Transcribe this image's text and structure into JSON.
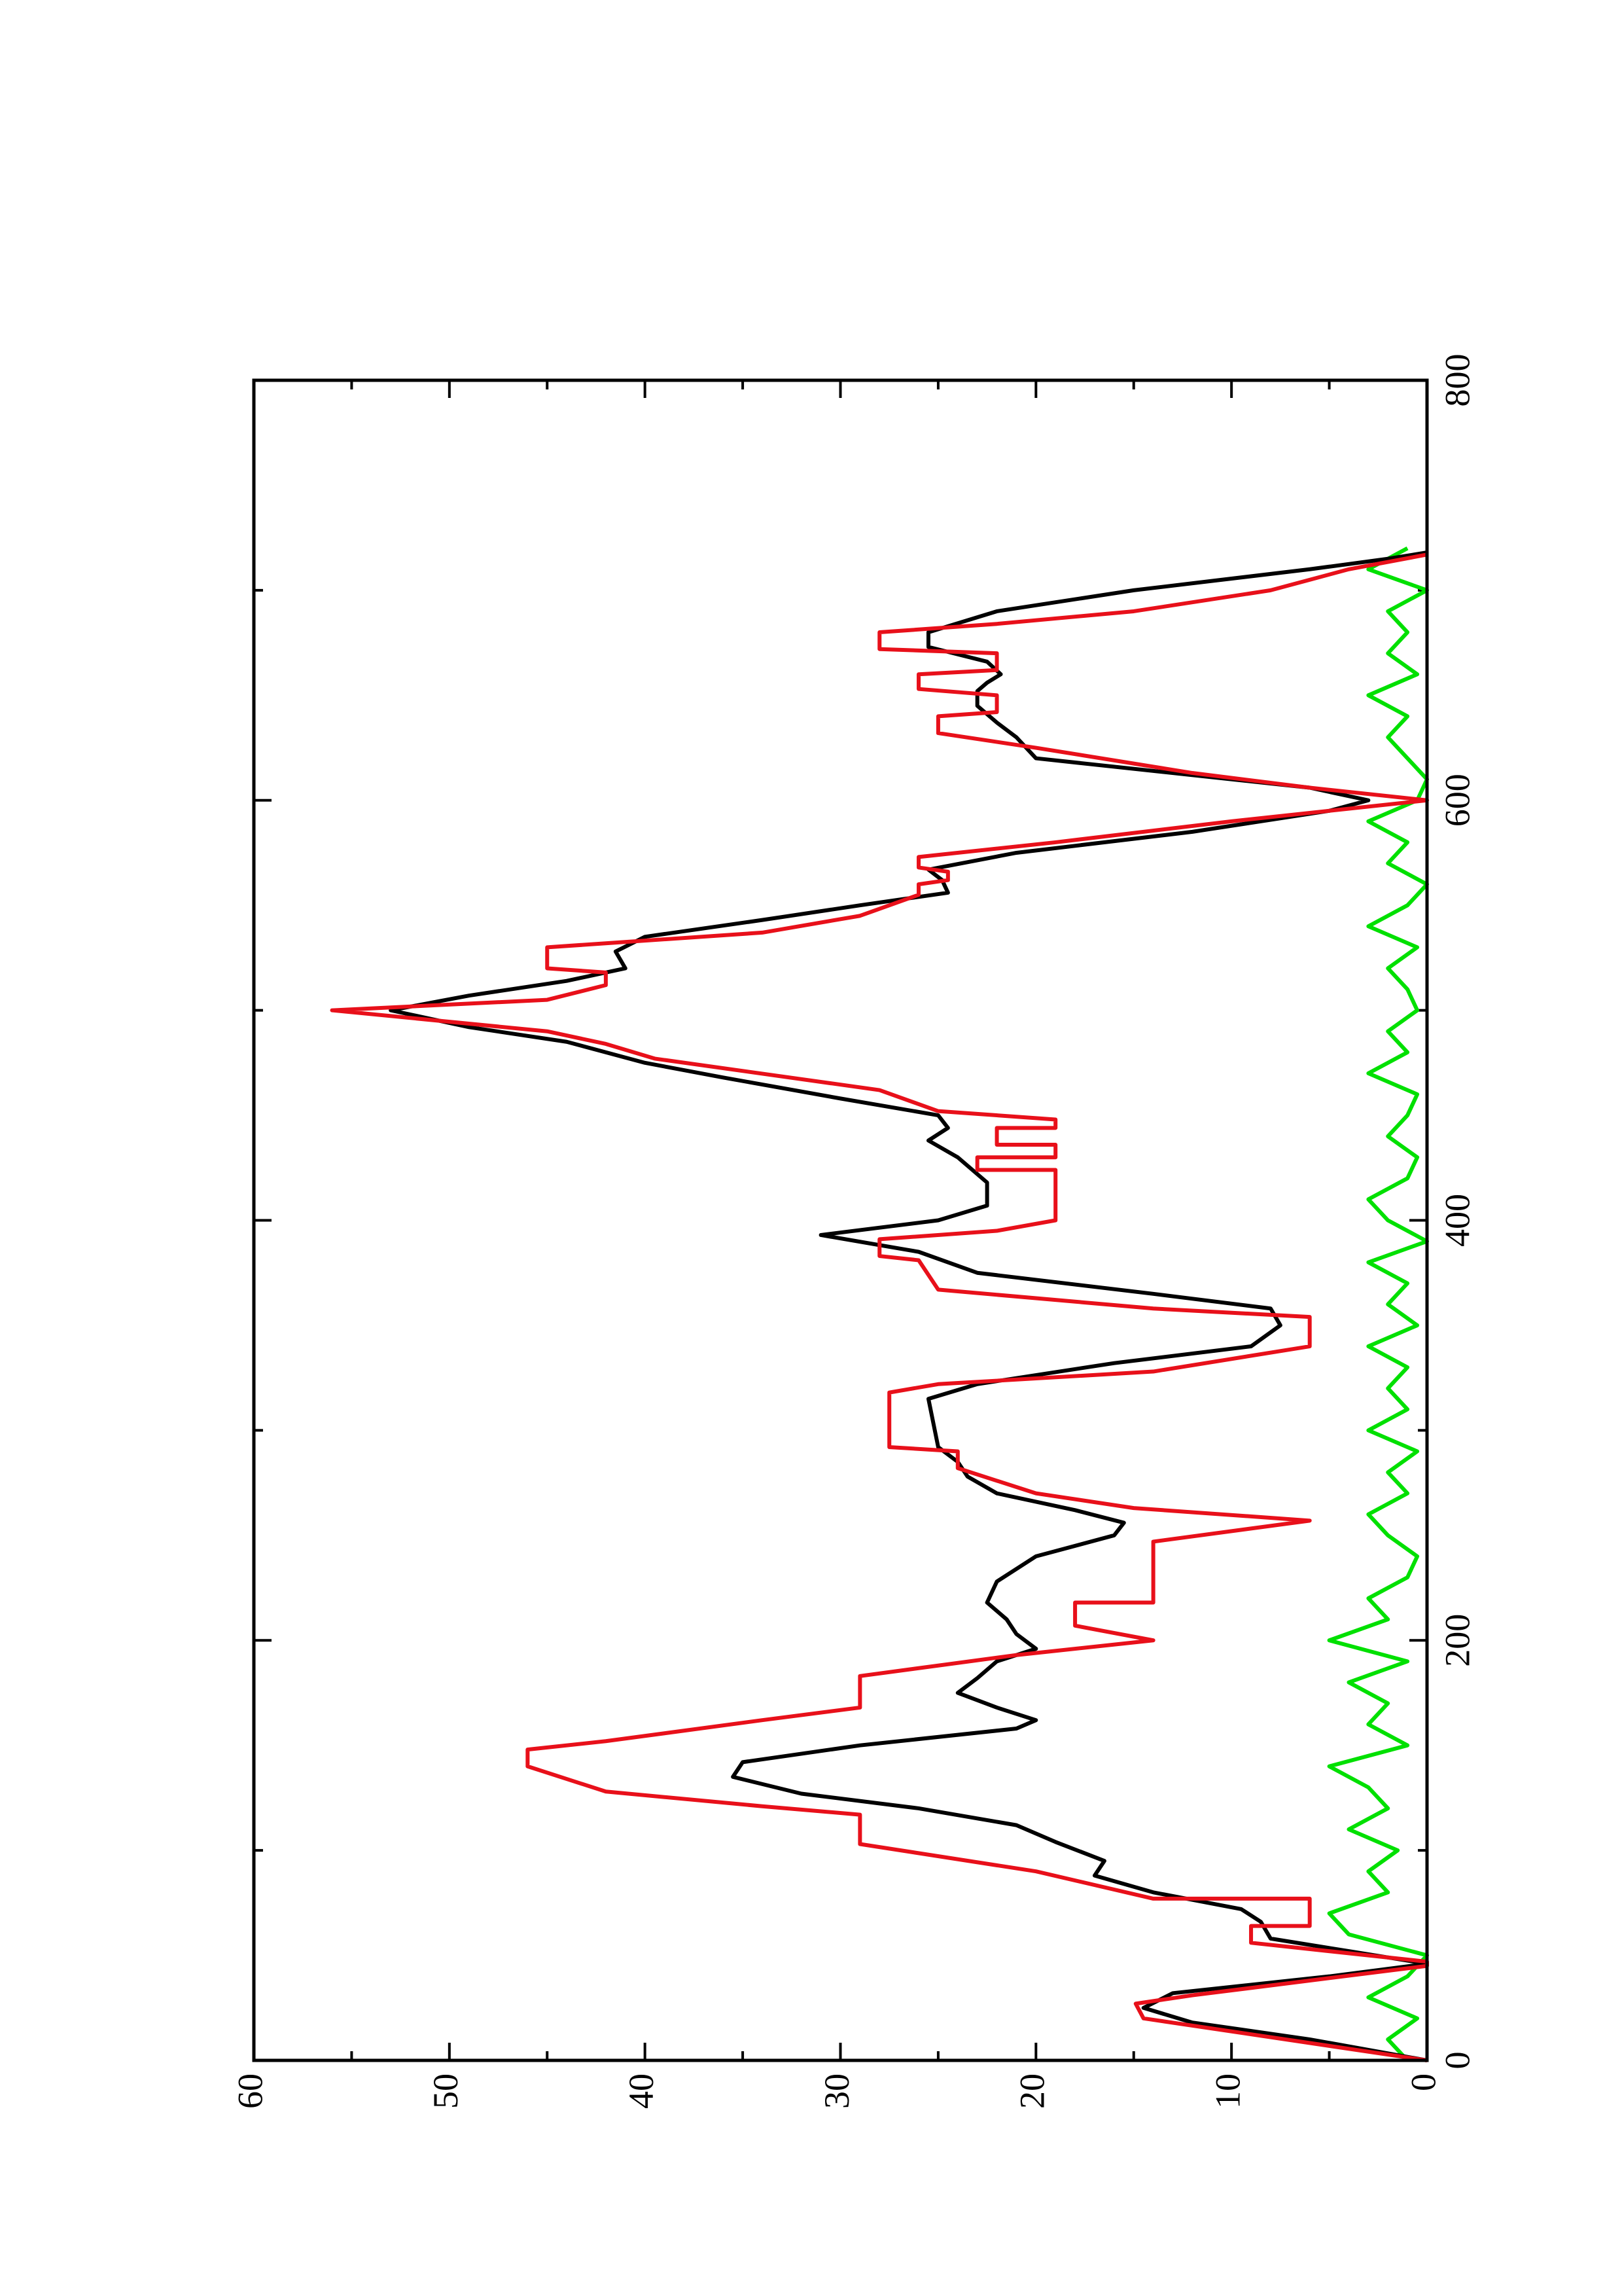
{
  "chart_data": {
    "type": "line",
    "xlim": [
      0,
      800
    ],
    "xticks": [
      0,
      200,
      400,
      600,
      800
    ],
    "ylim": [
      0,
      60
    ],
    "yticks": [
      0,
      10,
      20,
      30,
      40,
      50,
      60
    ],
    "series": [
      {
        "color": "#00e000",
        "x": [
          0,
          10,
          20,
          30,
          40,
          50,
          60,
          70,
          80,
          90,
          100,
          110,
          120,
          130,
          140,
          150,
          160,
          170,
          180,
          190,
          200,
          210,
          220,
          230,
          240,
          250,
          260,
          270,
          280,
          290,
          300,
          310,
          320,
          330,
          340,
          350,
          360,
          370,
          380,
          390,
          400,
          410,
          420,
          430,
          440,
          450,
          460,
          470,
          480,
          490,
          500,
          510,
          520,
          530,
          540,
          550,
          560,
          570,
          580,
          590,
          600,
          610,
          620,
          630,
          640,
          650,
          660,
          670,
          680,
          690,
          700,
          710,
          720
        ],
        "values": [
          1,
          2,
          0.5,
          3,
          1,
          0,
          4,
          5,
          2,
          3,
          1.5,
          4,
          2,
          3,
          5,
          1,
          3,
          2,
          4,
          1,
          5,
          2,
          3,
          1,
          0.5,
          2,
          3,
          1,
          2,
          0.5,
          3,
          1,
          2,
          1,
          3,
          0.5,
          2,
          1,
          3,
          0,
          2,
          3,
          1,
          0.5,
          2,
          1,
          0.5,
          3,
          1,
          2,
          0.5,
          1,
          2,
          0.5,
          3,
          1,
          0,
          2,
          1,
          3,
          0.5,
          0,
          1,
          2,
          1,
          3,
          0.5,
          2,
          1,
          2,
          0,
          3,
          1
        ]
      },
      {
        "color": "#000000",
        "x": [
          0,
          10,
          18,
          25,
          32,
          40,
          46,
          52,
          58,
          66,
          72,
          80,
          88,
          95,
          104,
          112,
          120,
          127,
          135,
          142,
          150,
          158,
          162,
          168,
          175,
          182,
          190,
          196,
          203,
          210,
          218,
          228,
          240,
          250,
          256,
          262,
          270,
          278,
          285,
          292,
          315,
          322,
          332,
          340,
          350,
          358,
          365,
          375,
          385,
          393,
          400,
          407,
          418,
          430,
          438,
          444,
          450,
          458,
          468,
          475,
          485,
          492,
          500,
          507,
          514,
          520,
          528,
          535,
          543,
          550,
          556,
          562,
          567,
          575,
          585,
          595,
          600,
          606,
          612,
          620,
          630,
          637,
          645,
          652,
          656,
          660,
          666,
          673,
          680,
          690,
          700,
          710,
          715,
          718
        ],
        "values": [
          0,
          6,
          12,
          14.5,
          13,
          5,
          0,
          4,
          8,
          8.5,
          9.5,
          14,
          17,
          16.5,
          19,
          21,
          26,
          32,
          35.5,
          35,
          29,
          21,
          20,
          22,
          24,
          23,
          22,
          20,
          21,
          21.5,
          22.5,
          22,
          20,
          16,
          15.5,
          18,
          22,
          23.5,
          24,
          25,
          25.5,
          23,
          16,
          9,
          7.5,
          8,
          14,
          23,
          26,
          31,
          25,
          22.5,
          22.5,
          24,
          25.5,
          24.5,
          25,
          30,
          36,
          40,
          44,
          49,
          53,
          49,
          44,
          41,
          41.5,
          40,
          34,
          29,
          24.5,
          24.8,
          25.5,
          21,
          12,
          5,
          3,
          6,
          12,
          20,
          21,
          22,
          23,
          23,
          22.5,
          21.8,
          22.5,
          25.5,
          25.5,
          22,
          15,
          6,
          2,
          0
        ]
      },
      {
        "color": "#e8101a",
        "x": [
          0,
          20,
          27,
          31,
          45,
          47,
          56,
          64,
          64,
          77,
          77,
          90,
          103,
          117,
          121,
          128,
          140,
          148,
          152,
          162,
          168,
          183,
          193,
          200,
          207,
          218,
          218,
          247,
          257,
          263,
          270,
          282,
          290,
          292,
          318,
          322,
          328,
          340,
          354,
          358,
          367,
          381,
          383,
          391,
          395,
          400,
          424,
          424,
          430,
          430,
          436,
          436,
          444,
          444,
          448,
          452,
          462,
          477,
          484,
          490,
          500,
          505,
          512,
          518,
          520,
          530,
          537,
          545,
          555,
          560,
          562,
          566,
          568,
          573,
          580,
          590,
          600,
          606,
          613,
          625,
          632,
          640,
          642,
          650,
          653,
          660,
          662,
          670,
          672,
          680,
          684,
          690,
          700,
          710,
          717
        ],
        "values": [
          0,
          14.5,
          14.9,
          12,
          0,
          0,
          9,
          9,
          6,
          6,
          14,
          20,
          29,
          29,
          34,
          42,
          46,
          46,
          42,
          34,
          29,
          29,
          21,
          14,
          18,
          18,
          14,
          14,
          6,
          15,
          20,
          24,
          24,
          27.5,
          27.5,
          25,
          14,
          6,
          6,
          14,
          25,
          26,
          28,
          28,
          22,
          19,
          19,
          23,
          23,
          19,
          19,
          22,
          22,
          19,
          19,
          25,
          28,
          39.5,
          42,
          45,
          56,
          45,
          42,
          42,
          45,
          45,
          34,
          29,
          26,
          26,
          24.5,
          24.5,
          26,
          26,
          19,
          10,
          0,
          6,
          12,
          20,
          25,
          25,
          22,
          22,
          26,
          26,
          22,
          22,
          28,
          28,
          22,
          15,
          8,
          4,
          0
        ]
      }
    ]
  }
}
